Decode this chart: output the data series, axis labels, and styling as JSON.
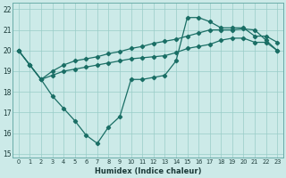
{
  "xlabel": "Humidex (Indice chaleur)",
  "background_color": "#cceae8",
  "grid_color": "#99ccc8",
  "line_color": "#1a6e65",
  "xlim": [
    -0.5,
    23.5
  ],
  "ylim": [
    14.8,
    22.3
  ],
  "xticks": [
    0,
    1,
    2,
    3,
    4,
    5,
    6,
    7,
    8,
    9,
    10,
    11,
    12,
    13,
    14,
    15,
    16,
    17,
    18,
    19,
    20,
    21,
    22,
    23
  ],
  "yticks": [
    15,
    16,
    17,
    18,
    19,
    20,
    21,
    22
  ],
  "line1_x": [
    0,
    1,
    2,
    3,
    4,
    5,
    6,
    7,
    8,
    9,
    10,
    11,
    12,
    13,
    14,
    15,
    16,
    17,
    18,
    19,
    20,
    21,
    22,
    23
  ],
  "line1_y": [
    20.0,
    19.3,
    18.6,
    17.8,
    17.2,
    16.6,
    15.9,
    15.5,
    16.3,
    16.8,
    18.6,
    18.6,
    18.7,
    18.8,
    19.5,
    21.6,
    21.6,
    21.4,
    21.1,
    21.1,
    21.1,
    20.7,
    20.7,
    20.4
  ],
  "line2_x": [
    0,
    1,
    2,
    3,
    4,
    5,
    6,
    7,
    8,
    9,
    10,
    11,
    12,
    13,
    14,
    15,
    16,
    17,
    18,
    19,
    20,
    21,
    22,
    23
  ],
  "line2_y": [
    20.0,
    19.3,
    18.6,
    18.8,
    19.0,
    19.1,
    19.2,
    19.3,
    19.4,
    19.5,
    19.6,
    19.65,
    19.7,
    19.75,
    19.9,
    20.1,
    20.2,
    20.3,
    20.5,
    20.6,
    20.6,
    20.4,
    20.4,
    20.0
  ],
  "line3_x": [
    0,
    1,
    2,
    3,
    4,
    5,
    6,
    7,
    8,
    9,
    10,
    11,
    12,
    13,
    14,
    15,
    16,
    17,
    18,
    19,
    20,
    21,
    22,
    23
  ],
  "line3_y": [
    20.0,
    19.3,
    18.6,
    19.0,
    19.3,
    19.5,
    19.6,
    19.7,
    19.85,
    19.95,
    20.1,
    20.2,
    20.35,
    20.45,
    20.55,
    20.7,
    20.85,
    21.0,
    21.0,
    21.0,
    21.05,
    21.0,
    20.5,
    20.0
  ]
}
